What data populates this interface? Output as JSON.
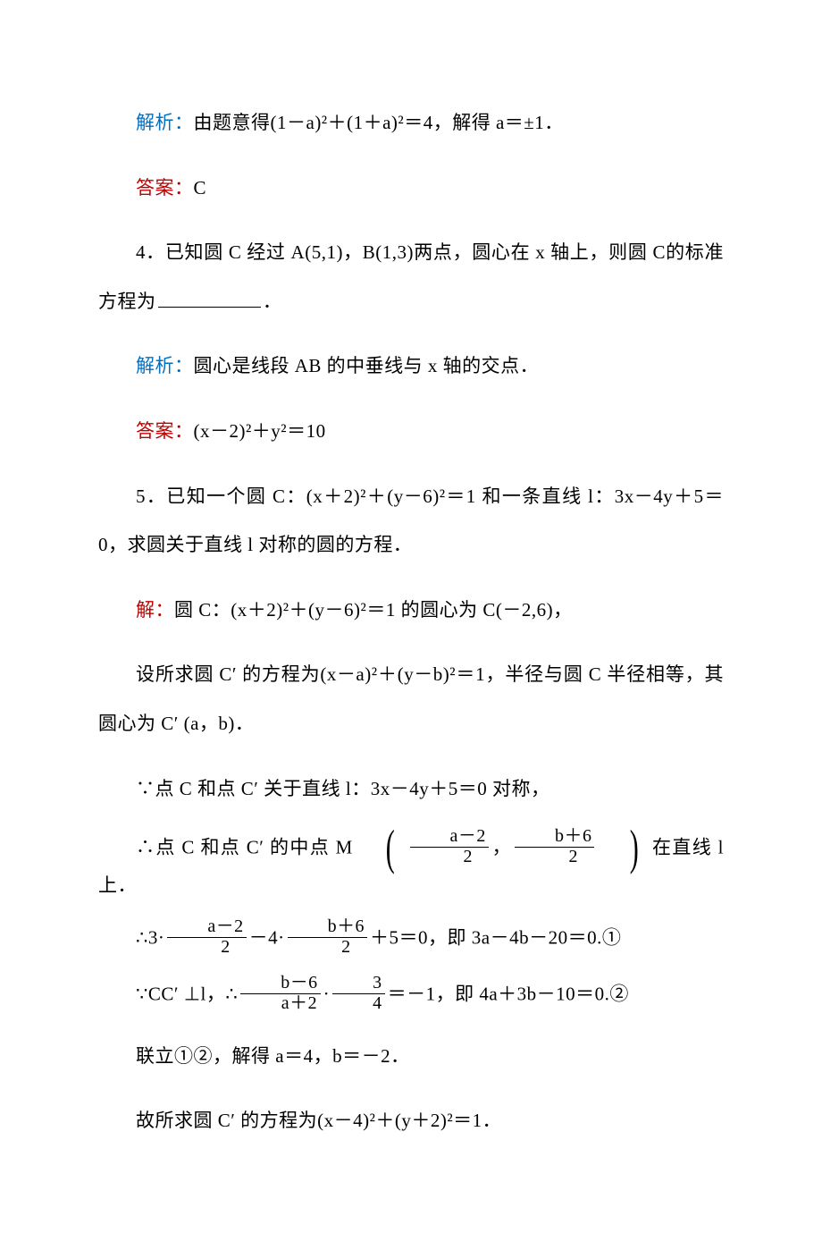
{
  "colors": {
    "blue": "#0070c0",
    "red": "#c00000",
    "text": "#000000",
    "bg": "#ffffff"
  },
  "p3": {
    "analysis_label": "解析：",
    "analysis_text": "由题意得(1－a)²＋(1＋a)²＝4，解得 a＝±1．",
    "answer_label": "答案：",
    "answer_text": "C"
  },
  "p4": {
    "question_part1": "4．已知圆 C 经过 A(5,1)，B(1,3)两点，圆心在 x 轴上，则圆 C的标准方程为",
    "question_part2": "．",
    "analysis_label": "解析：",
    "analysis_text": "圆心是线段 AB 的中垂线与 x 轴的交点．",
    "answer_label": "答案：",
    "answer_text": "(x－2)²＋y²＝10"
  },
  "p5": {
    "q_line1": "5．已知一个圆 C：(x＋2)²＋(y－6)²＝1 和一条直线 l：3x－4y＋5＝0，求圆关于直线 l 对称的圆的方程．",
    "sol_label": "解：",
    "sol_l1": "圆 C：(x＋2)²＋(y－6)²＝1 的圆心为 C(－2,6)，",
    "sol_l2": "设所求圆 C′ 的方程为(x－a)²＋(y－b)²＝1，半径与圆 C 半径相等，其圆心为 C′ (a，b)．",
    "sol_l3": "∵点 C 和点 C′ 关于直线 l：3x－4y＋5＝0 对称，",
    "sol_l4_a": "∴点 C 和点 C′ 的中点 M",
    "sol_l4_f1n": "a－2",
    "sol_l4_f1d": "2",
    "sol_l4_comma": "，",
    "sol_l4_f2n": "b＋6",
    "sol_l4_f2d": "2",
    "sol_l4_b": "在直线 l 上．",
    "sol_l5_a": "∴3·",
    "sol_l5_f1n": "a－2",
    "sol_l5_f1d": "2",
    "sol_l5_b": "－4·",
    "sol_l5_f2n": "b＋6",
    "sol_l5_f2d": "2",
    "sol_l5_c": "＋5＝0，即 3a－4b－20＝0.①",
    "sol_l6_a": "∵CC′ ⊥l，∴",
    "sol_l6_f1n": "b－6",
    "sol_l6_f1d": "a＋2",
    "sol_l6_dot": "·",
    "sol_l6_f2n": "3",
    "sol_l6_f2d": "4",
    "sol_l6_b": "＝－1，即 4a＋3b－10＝0.②",
    "sol_l7": "联立①②，解得 a＝4，b＝－2．",
    "sol_l8": "故所求圆 C′ 的方程为(x－4)²＋(y＋2)²＝1．"
  }
}
